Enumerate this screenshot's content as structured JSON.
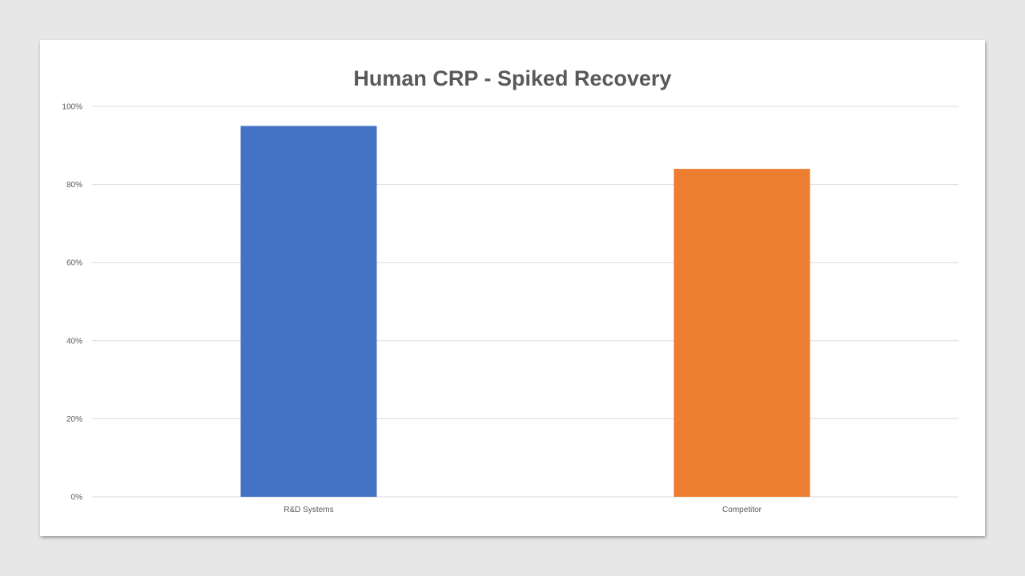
{
  "chart_data": {
    "type": "bar",
    "title": "Human CRP - Spiked Recovery",
    "xlabel": "",
    "ylabel": "",
    "categories": [
      "R&D Systems",
      "Competitor"
    ],
    "values": [
      0.95,
      0.84
    ],
    "bar_colors": [
      "#4472c4",
      "#ed7d31"
    ],
    "ylim": [
      0,
      1
    ],
    "yticks": [
      0,
      0.2,
      0.4,
      0.6,
      0.8,
      1
    ],
    "ytick_labels": [
      "0%",
      "20%",
      "40%",
      "60%",
      "80%",
      "100%"
    ],
    "grid": true,
    "gridline_color": "#d9d9d9",
    "legend": "none"
  }
}
